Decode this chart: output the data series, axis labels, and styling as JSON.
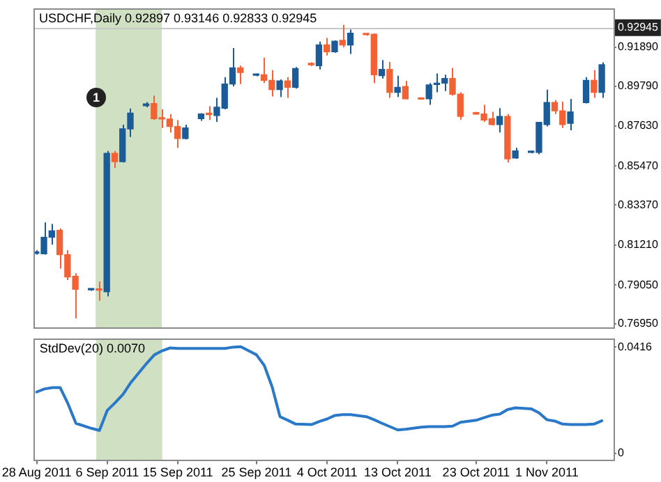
{
  "chart_data": [
    {
      "type": "candlestick",
      "title": "USDCHF,Daily 0.92897 0.93146 0.92833 0.92945",
      "x": [
        "2011-08-28",
        "2011-08-29",
        "2011-08-30",
        "2011-08-31",
        "2011-09-01",
        "2011-09-02",
        "2011-09-04",
        "2011-09-05",
        "2011-09-06",
        "2011-09-07",
        "2011-09-08",
        "2011-09-09",
        "2011-09-11",
        "2011-09-12",
        "2011-09-13",
        "2011-09-14",
        "2011-09-15",
        "2011-09-16",
        "2011-09-18",
        "2011-09-19",
        "2011-09-20",
        "2011-09-21",
        "2011-09-22",
        "2011-09-23",
        "2011-09-25",
        "2011-09-26",
        "2011-09-27",
        "2011-09-28",
        "2011-09-29",
        "2011-09-30",
        "2011-10-02",
        "2011-10-03",
        "2011-10-04",
        "2011-10-05",
        "2011-10-06",
        "2011-10-07",
        "2011-10-09",
        "2011-10-10",
        "2011-10-11",
        "2011-10-12",
        "2011-10-13",
        "2011-10-14",
        "2011-10-16",
        "2011-10-17",
        "2011-10-18",
        "2011-10-19",
        "2011-10-20",
        "2011-10-21",
        "2011-10-23",
        "2011-10-24",
        "2011-10-25",
        "2011-10-26",
        "2011-10-27",
        "2011-10-28",
        "2011-10-30",
        "2011-10-31",
        "2011-11-01",
        "2011-11-02",
        "2011-11-03",
        "2011-11-04",
        "2011-11-06",
        "2011-11-07",
        "2011-11-08"
      ],
      "ohlc": [
        [
          0.8076,
          0.8093,
          0.8069,
          0.8081
        ],
        [
          0.8074,
          0.8243,
          0.8069,
          0.8163
        ],
        [
          0.8163,
          0.8235,
          0.8123,
          0.8198
        ],
        [
          0.82,
          0.821,
          0.7994,
          0.8069
        ],
        [
          0.8069,
          0.8093,
          0.7932,
          0.7949
        ],
        [
          0.7952,
          0.7969,
          0.7725,
          0.7882
        ],
        [
          0.7879,
          0.7887,
          0.7874,
          0.7884
        ],
        [
          0.7884,
          0.7924,
          0.782,
          0.7877
        ],
        [
          0.7869,
          0.8629,
          0.7844,
          0.8616
        ],
        [
          0.8616,
          0.8629,
          0.8537,
          0.8571
        ],
        [
          0.8571,
          0.8771,
          0.8567,
          0.8748
        ],
        [
          0.8748,
          0.8858,
          0.8704,
          0.8833
        ],
        [
          0.8873,
          0.8893,
          0.8865,
          0.8883
        ],
        [
          0.8885,
          0.8928,
          0.8796,
          0.8803
        ],
        [
          0.8806,
          0.8853,
          0.8753,
          0.8801
        ],
        [
          0.8801,
          0.8828,
          0.8728,
          0.8761
        ],
        [
          0.8761,
          0.8796,
          0.8646,
          0.8696
        ],
        [
          0.8696,
          0.8771,
          0.8691,
          0.8753
        ],
        [
          0.8803,
          0.8833,
          0.8791,
          0.8828
        ],
        [
          0.883,
          0.887,
          0.8796,
          0.8825
        ],
        [
          0.882,
          0.8915,
          0.8786,
          0.8865
        ],
        [
          0.886,
          0.9027,
          0.8853,
          0.899
        ],
        [
          0.899,
          0.9184,
          0.8977,
          0.9077
        ],
        [
          0.9077,
          0.9089,
          0.899,
          0.9052
        ],
        [
          0.9037,
          0.9047,
          0.9032,
          0.9042
        ],
        [
          0.904,
          0.9132,
          0.8995,
          0.901
        ],
        [
          0.901,
          0.9065,
          0.8923,
          0.896
        ],
        [
          0.896,
          0.9015,
          0.892,
          0.9007
        ],
        [
          0.9007,
          0.9027,
          0.8915,
          0.8972
        ],
        [
          0.8972,
          0.9082,
          0.8965,
          0.9074
        ],
        [
          0.9099,
          0.9107,
          0.9087,
          0.9094
        ],
        [
          0.9089,
          0.9219,
          0.9069,
          0.9201
        ],
        [
          0.9201,
          0.9239,
          0.9144,
          0.9164
        ],
        [
          0.9164,
          0.9226,
          0.9159,
          0.9221
        ],
        [
          0.9226,
          0.9309,
          0.9189,
          0.9201
        ],
        [
          0.9201,
          0.9284,
          0.9152,
          0.9264
        ],
        [
          0.9261,
          0.9266,
          0.9251,
          0.9256
        ],
        [
          0.9259,
          0.9264,
          0.8995,
          0.904
        ],
        [
          0.9035,
          0.9119,
          0.902,
          0.9069
        ],
        [
          0.9069,
          0.9109,
          0.8915,
          0.8945
        ],
        [
          0.8945,
          0.9035,
          0.892,
          0.8972
        ],
        [
          0.8977,
          0.9007,
          0.8908,
          0.891
        ],
        [
          0.8913,
          0.8915,
          0.8905,
          0.8908
        ],
        [
          0.891,
          0.8995,
          0.8878,
          0.8985
        ],
        [
          0.8987,
          0.9047,
          0.8945,
          0.8992
        ],
        [
          0.8995,
          0.904,
          0.8952,
          0.902
        ],
        [
          0.902,
          0.9077,
          0.8928,
          0.8935
        ],
        [
          0.8935,
          0.8945,
          0.8798,
          0.8815
        ],
        [
          0.8835,
          0.884,
          0.8825,
          0.8828
        ],
        [
          0.8828,
          0.8878,
          0.8786,
          0.8796
        ],
        [
          0.8803,
          0.884,
          0.8766,
          0.8771
        ],
        [
          0.8771,
          0.886,
          0.8728,
          0.8815
        ],
        [
          0.8815,
          0.8828,
          0.8567,
          0.8586
        ],
        [
          0.8591,
          0.8646,
          0.8586,
          0.8629
        ],
        [
          0.8621,
          0.8631,
          0.8616,
          0.8626
        ],
        [
          0.8621,
          0.8786,
          0.8611,
          0.8783
        ],
        [
          0.8771,
          0.896,
          0.8761,
          0.889
        ],
        [
          0.889,
          0.8903,
          0.8828,
          0.8845
        ],
        [
          0.8845,
          0.8895,
          0.8753,
          0.8771
        ],
        [
          0.8778,
          0.891,
          0.8741,
          0.884
        ],
        [
          0.889,
          0.9027,
          0.8885,
          0.901
        ],
        [
          0.901,
          0.9065,
          0.8915,
          0.8945
        ],
        [
          0.8945,
          0.9107,
          0.8915,
          0.9094
        ]
      ],
      "colors": [
        "#1b5c98",
        "#1b5c98",
        "#1b5c98",
        "#f26234",
        "#f26234",
        "#f26234",
        "#1b5c98",
        "#f26234",
        "#1b5c98",
        "#f26234",
        "#1b5c98",
        "#1b5c98",
        "#1b5c98",
        "#f26234",
        "#f26234",
        "#f26234",
        "#f26234",
        "#1b5c98",
        "#1b5c98",
        "#f26234",
        "#1b5c98",
        "#1b5c98",
        "#1b5c98",
        "#f26234",
        "#1b5c98",
        "#f26234",
        "#f26234",
        "#1b5c98",
        "#f26234",
        "#1b5c98",
        "#f26234",
        "#1b5c98",
        "#f26234",
        "#1b5c98",
        "#f26234",
        "#1b5c98",
        "#f26234",
        "#f26234",
        "#1b5c98",
        "#f26234",
        "#1b5c98",
        "#f26234",
        "#f26234",
        "#1b5c98",
        "#1b5c98",
        "#1b5c98",
        "#f26234",
        "#f26234",
        "#f26234",
        "#f26234",
        "#f26234",
        "#1b5c98",
        "#f26234",
        "#1b5c98",
        "#1b5c98",
        "#1b5c98",
        "#1b5c98",
        "#f26234",
        "#f26234",
        "#1b5c98",
        "#1b5c98",
        "#f26234",
        "#1b5c98"
      ],
      "xlim": [
        "2011-08-27T16:00",
        "2011-11-09T12:00"
      ],
      "ylim": [
        0.7675,
        0.94
      ],
      "yticks": [
        {
          "value": 0.9189,
          "label": "0.91890"
        },
        {
          "value": 0.8979,
          "label": "0.89790"
        },
        {
          "value": 0.8763,
          "label": "0.87630"
        },
        {
          "value": 0.8547,
          "label": "0.85470"
        },
        {
          "value": 0.8337,
          "label": "0.83370"
        },
        {
          "value": 0.8121,
          "label": "0.81210"
        },
        {
          "value": 0.7905,
          "label": "0.79050"
        },
        {
          "value": 0.7695,
          "label": "0.76950"
        }
      ],
      "tick_labels": "y",
      "ref_lines": [
        {
          "axis": "y",
          "value": 0.92945,
          "label": "0.92945",
          "color": "#c8c8c8"
        }
      ],
      "bands": [
        {
          "axis": "x",
          "from": "2011-09-04T14:00",
          "to": "2011-09-13T00:00",
          "color": "#d0e0c2"
        }
      ],
      "annotations": [
        "1"
      ]
    },
    {
      "type": "line",
      "title": "StdDev(20) 0.0070",
      "x": [
        "2011-08-28",
        "2011-08-29",
        "2011-08-30",
        "2011-08-31",
        "2011-09-01",
        "2011-09-02",
        "2011-09-04",
        "2011-09-05",
        "2011-09-06",
        "2011-09-07",
        "2011-09-08",
        "2011-09-09",
        "2011-09-11",
        "2011-09-12",
        "2011-09-13",
        "2011-09-14",
        "2011-09-15",
        "2011-09-16",
        "2011-09-18",
        "2011-09-19",
        "2011-09-20",
        "2011-09-21",
        "2011-09-22",
        "2011-09-23",
        "2011-09-25",
        "2011-09-26",
        "2011-09-27",
        "2011-09-28",
        "2011-09-29",
        "2011-09-30",
        "2011-10-02",
        "2011-10-03",
        "2011-10-04",
        "2011-10-05",
        "2011-10-06",
        "2011-10-07",
        "2011-10-09",
        "2011-10-10",
        "2011-10-11",
        "2011-10-12",
        "2011-10-13",
        "2011-10-14",
        "2011-10-16",
        "2011-10-17",
        "2011-10-18",
        "2011-10-19",
        "2011-10-20",
        "2011-10-21",
        "2011-10-23",
        "2011-10-24",
        "2011-10-25",
        "2011-10-26",
        "2011-10-27",
        "2011-10-28",
        "2011-10-30",
        "2011-10-31",
        "2011-11-01",
        "2011-11-02",
        "2011-11-03",
        "2011-11-04",
        "2011-11-06",
        "2011-11-07",
        "2011-11-08"
      ],
      "series": [
        {
          "color": "#2a78c8",
          "values": [
            0.024,
            0.0252,
            0.0257,
            0.0257,
            0.0193,
            0.0117,
            0.0097,
            0.0089,
            0.0168,
            0.0198,
            0.0231,
            0.0277,
            0.0352,
            0.0386,
            0.0402,
            0.0413,
            0.0411,
            0.0411,
            0.0411,
            0.0411,
            0.0411,
            0.0411,
            0.0416,
            0.0418,
            0.0386,
            0.0344,
            0.026,
            0.0143,
            0.0129,
            0.0114,
            0.0112,
            0.0124,
            0.0134,
            0.0148,
            0.0151,
            0.0151,
            0.0143,
            0.0131,
            0.0117,
            0.0104,
            0.0091,
            0.0094,
            0.0102,
            0.0104,
            0.0104,
            0.0104,
            0.0106,
            0.0121,
            0.0129,
            0.0139,
            0.0149,
            0.0153,
            0.0171,
            0.0178,
            0.0174,
            0.0158,
            0.0131,
            0.0126,
            0.0114,
            0.0112,
            0.0112,
            0.0114,
            0.0127
          ]
        }
      ],
      "xlim": [
        "2011-08-27T16:00",
        "2011-11-09T12:00"
      ],
      "xticks": [
        {
          "value": "2011-08-28",
          "label": "28 Aug 2011"
        },
        {
          "value": "2011-09-06",
          "label": "6 Sep 2011"
        },
        {
          "value": "2011-09-15",
          "label": "15 Sep 2011"
        },
        {
          "value": "2011-09-25",
          "label": "25 Sep 2011"
        },
        {
          "value": "2011-10-04",
          "label": "4 Oct 2011"
        },
        {
          "value": "2011-10-13",
          "label": "13 Oct 2011"
        },
        {
          "value": "2011-10-23",
          "label": "23 Oct 2011"
        },
        {
          "value": "2011-11-01",
          "label": "1 Nov 2011"
        }
      ],
      "ylim": [
        -0.0027,
        0.0451
      ],
      "yticks": [
        0.0416,
        0
      ],
      "marker": "none",
      "bands": [
        {
          "axis": "x",
          "from": "2011-09-04T14:00",
          "to": "2011-09-13T00:00",
          "color": "#d0e0c2"
        }
      ]
    }
  ]
}
